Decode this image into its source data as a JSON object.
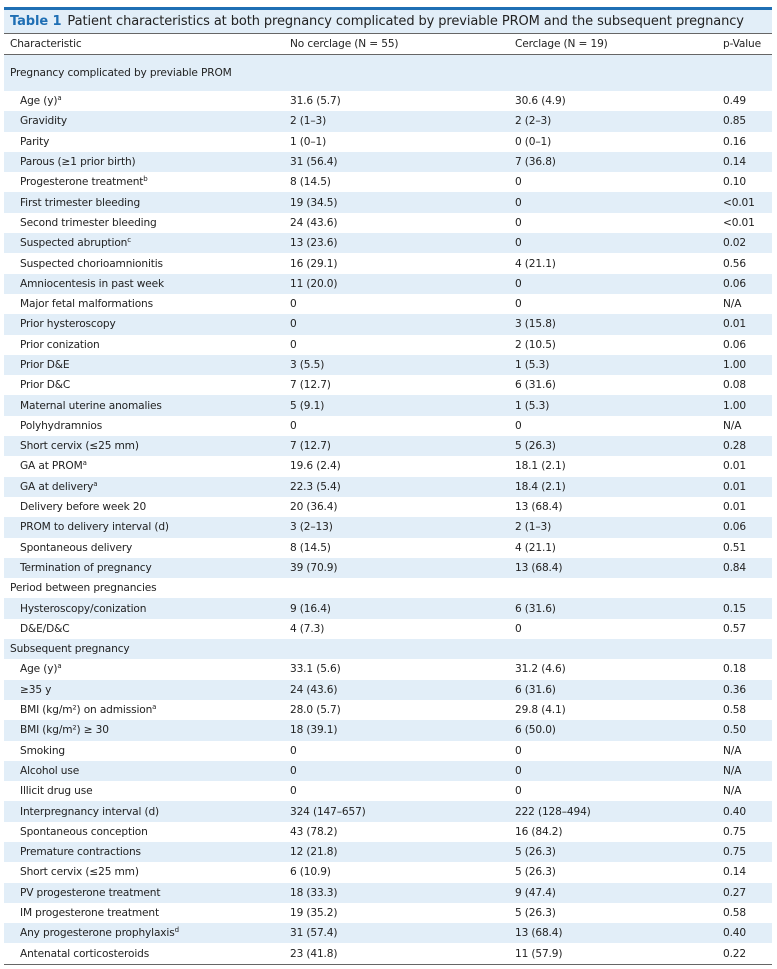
{
  "title": {
    "label": "Table 1",
    "text": "Patient characteristics at both pregnancy complicated by previable PROM and the subsequent pregnancy"
  },
  "header": {
    "characteristic": "Characteristic",
    "no_cerclage": "No cerclage (N = 55)",
    "cerclage": "Cerclage (N = 19)",
    "pvalue": "p-Value"
  },
  "rows": [
    {
      "section": "Pregnancy complicated by previable PROM"
    },
    {
      "c": "Age (y)",
      "sup": "a",
      "n": "31.6 (5.7)",
      "y": "30.6 (4.9)",
      "p": "0.49"
    },
    {
      "c": "Gravidity",
      "n": "2 (1–3)",
      "y": "2 (2–3)",
      "p": "0.85"
    },
    {
      "c": "Parity",
      "n": "1 (0–1)",
      "y": "0 (0–1)",
      "p": "0.16"
    },
    {
      "c": "Parous (≥1 prior birth)",
      "n": "31 (56.4)",
      "y": "7 (36.8)",
      "p": "0.14"
    },
    {
      "c": "Progesterone treatment",
      "sup": "b",
      "n": "8 (14.5)",
      "y": "0",
      "p": "0.10"
    },
    {
      "c": "First trimester bleeding",
      "n": "19 (34.5)",
      "y": "0",
      "p": "<0.01"
    },
    {
      "c": "Second trimester bleeding",
      "n": "24 (43.6)",
      "y": "0",
      "p": "<0.01"
    },
    {
      "c": "Suspected abruption",
      "sup": "c",
      "n": "13 (23.6)",
      "y": "0",
      "p": "0.02"
    },
    {
      "c": "Suspected chorioamnionitis",
      "n": "16 (29.1)",
      "y": "4 (21.1)",
      "p": "0.56"
    },
    {
      "c": "Amniocentesis in past week",
      "n": "11 (20.0)",
      "y": "0",
      "p": "0.06"
    },
    {
      "c": "Major fetal malformations",
      "n": "0",
      "y": "0",
      "p": "N/A"
    },
    {
      "c": "Prior hysteroscopy",
      "n": "0",
      "y": "3 (15.8)",
      "p": "0.01"
    },
    {
      "c": "Prior conization",
      "n": "0",
      "y": "2 (10.5)",
      "p": "0.06"
    },
    {
      "c": "Prior D&E",
      "n": "3 (5.5)",
      "y": "1 (5.3)",
      "p": "1.00"
    },
    {
      "c": "Prior D&C",
      "n": "7 (12.7)",
      "y": "6 (31.6)",
      "p": "0.08"
    },
    {
      "c": "Maternal uterine anomalies",
      "n": "5 (9.1)",
      "y": "1 (5.3)",
      "p": "1.00"
    },
    {
      "c": "Polyhydramnios",
      "n": "0",
      "y": "0",
      "p": "N/A"
    },
    {
      "c": "Short cervix (≤25 mm)",
      "n": "7 (12.7)",
      "y": "5 (26.3)",
      "p": "0.28"
    },
    {
      "c": "GA at PROM",
      "sup": "a",
      "n": "19.6 (2.4)",
      "y": "18.1 (2.1)",
      "p": "0.01"
    },
    {
      "c": "GA at delivery",
      "sup": "a",
      "n": "22.3 (5.4)",
      "y": "18.4 (2.1)",
      "p": "0.01"
    },
    {
      "c": "Delivery before week 20",
      "n": "20 (36.4)",
      "y": "13 (68.4)",
      "p": "0.01"
    },
    {
      "c": "PROM to delivery interval (d)",
      "n": "3 (2–13)",
      "y": "2 (1–3)",
      "p": "0.06"
    },
    {
      "c": "Spontaneous delivery",
      "n": "8 (14.5)",
      "y": "4 (21.1)",
      "p": "0.51"
    },
    {
      "c": "Termination of pregnancy",
      "n": "39 (70.9)",
      "y": "13 (68.4)",
      "p": "0.84"
    },
    {
      "section": "Period between pregnancies"
    },
    {
      "c": "Hysteroscopy/conization",
      "n": "9 (16.4)",
      "y": "6 (31.6)",
      "p": "0.15"
    },
    {
      "c": "D&E/D&C",
      "n": "4 (7.3)",
      "y": "0",
      "p": "0.57"
    },
    {
      "section": "Subsequent pregnancy"
    },
    {
      "c": "Age (y)",
      "sup": "a",
      "n": "33.1 (5.6)",
      "y": "31.2 (4.6)",
      "p": "0.18"
    },
    {
      "c": "≥35 y",
      "n": "24 (43.6)",
      "y": "6 (31.6)",
      "p": "0.36"
    },
    {
      "c": "BMI (kg/m²) on admission",
      "sup": "a",
      "n": "28.0 (5.7)",
      "y": "29.8 (4.1)",
      "p": "0.58"
    },
    {
      "c": "BMI (kg/m²) ≥ 30",
      "n": "18 (39.1)",
      "y": "6 (50.0)",
      "p": "0.50"
    },
    {
      "c": "Smoking",
      "n": "0",
      "y": "0",
      "p": "N/A"
    },
    {
      "c": "Alcohol use",
      "n": "0",
      "y": "0",
      "p": "N/A"
    },
    {
      "c": "Illicit drug use",
      "n": "0",
      "y": "0",
      "p": "N/A"
    },
    {
      "c": "Interpregnancy interval (d)",
      "n": "324 (147–657)",
      "y": "222 (128–494)",
      "p": "0.40"
    },
    {
      "c": "Spontaneous conception",
      "n": "43 (78.2)",
      "y": "16 (84.2)",
      "p": "0.75"
    },
    {
      "c": "Premature contractions",
      "n": "12 (21.8)",
      "y": "5 (26.3)",
      "p": "0.75"
    },
    {
      "c": "Short cervix (≤25 mm)",
      "n": "6 (10.9)",
      "y": "5 (26.3)",
      "p": "0.14"
    },
    {
      "c": "PV progesterone treatment",
      "n": "18 (33.3)",
      "y": "9 (47.4)",
      "p": "0.27"
    },
    {
      "c": "IM progesterone treatment",
      "n": "19 (35.2)",
      "y": "5 (26.3)",
      "p": "0.58"
    },
    {
      "c": "Any progesterone prophylaxis",
      "sup": "d",
      "n": "31 (57.4)",
      "y": "13 (68.4)",
      "p": "0.40"
    },
    {
      "c": "Antenatal corticosteroids",
      "n": "23 (41.8)",
      "y": "11 (57.9)",
      "p": "0.22"
    }
  ]
}
